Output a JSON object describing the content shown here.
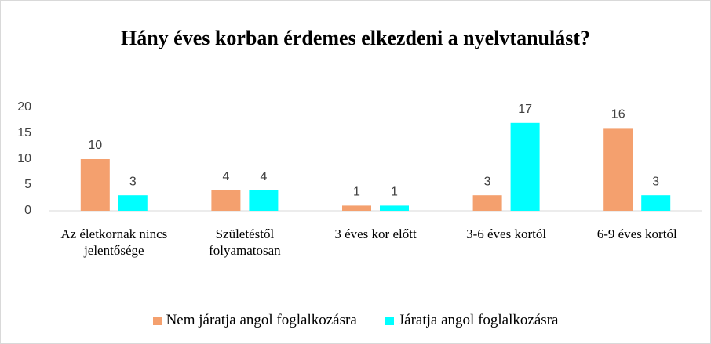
{
  "chart_data": {
    "type": "bar",
    "title": "Hány éves korban érdemes elkezdeni a nyelvtanulást?",
    "categories": [
      "Az életkornak nincs jelentősége",
      "Születéstől folyamatosan",
      "3 éves kor előtt",
      "3-6 éves kortól",
      "6-9 éves kortól"
    ],
    "series": [
      {
        "name": "Nem járatja angol foglalkozásra",
        "color": "#f4a06e",
        "values": [
          10,
          4,
          1,
          3,
          16
        ]
      },
      {
        "name": "Járatja angol foglalkozásra",
        "color": "#00ffff",
        "values": [
          3,
          4,
          1,
          17,
          3
        ]
      }
    ],
    "ylim": [
      0,
      20
    ],
    "yticks": [
      0,
      5,
      10,
      15,
      20
    ],
    "grid": false
  }
}
